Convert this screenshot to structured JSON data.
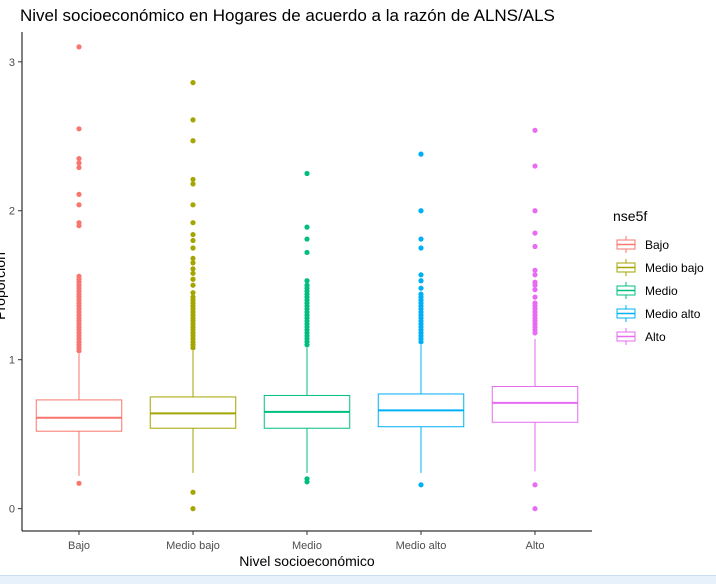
{
  "chart_data": {
    "type": "box",
    "title": "Nivel socioeconómico en Hogares de acuerdo a la razón de ALNS/ALS",
    "xlabel": "Nivel socioeconómico",
    "ylabel": "Proporción",
    "categories": [
      "Bajo",
      "Medio bajo",
      "Medio",
      "Medio alto",
      "Alto"
    ],
    "ylim": [
      -0.15,
      3.2
    ],
    "yticks": [
      0,
      1,
      2,
      3
    ],
    "grid": false,
    "legend": {
      "title": "nse5f",
      "placement": "right",
      "entries": [
        "Bajo",
        "Medio bajo",
        "Medio",
        "Medio alto",
        "Alto"
      ]
    },
    "colors": [
      "#F8766D",
      "#A3A500",
      "#00BF7D",
      "#00B0F6",
      "#E76BF3"
    ],
    "series": [
      {
        "name": "Bajo",
        "whisker_low": 0.22,
        "q1": 0.52,
        "median": 0.61,
        "q3": 0.73,
        "whisker_high": 1.04,
        "outliers": [
          0.17,
          1.06,
          1.08,
          1.1,
          1.12,
          1.14,
          1.16,
          1.18,
          1.2,
          1.22,
          1.24,
          1.26,
          1.28,
          1.3,
          1.32,
          1.34,
          1.36,
          1.38,
          1.4,
          1.42,
          1.44,
          1.46,
          1.48,
          1.5,
          1.52,
          1.54,
          1.56,
          1.9,
          1.92,
          2.04,
          2.11,
          2.29,
          2.32,
          2.35,
          2.55,
          3.1
        ]
      },
      {
        "name": "Medio bajo",
        "whisker_low": 0.24,
        "q1": 0.54,
        "median": 0.64,
        "q3": 0.75,
        "whisker_high": 1.06,
        "outliers": [
          0.0,
          0.11,
          1.08,
          1.1,
          1.12,
          1.14,
          1.16,
          1.18,
          1.2,
          1.22,
          1.24,
          1.26,
          1.28,
          1.3,
          1.32,
          1.34,
          1.36,
          1.38,
          1.4,
          1.42,
          1.45,
          1.5,
          1.54,
          1.58,
          1.61,
          1.65,
          1.68,
          1.75,
          1.8,
          1.84,
          1.92,
          2.04,
          2.18,
          2.21,
          2.47,
          2.61,
          2.86
        ]
      },
      {
        "name": "Medio",
        "whisker_low": 0.24,
        "q1": 0.54,
        "median": 0.65,
        "q3": 0.76,
        "whisker_high": 1.08,
        "outliers": [
          0.18,
          0.2,
          1.1,
          1.12,
          1.14,
          1.16,
          1.18,
          1.2,
          1.22,
          1.24,
          1.26,
          1.28,
          1.3,
          1.32,
          1.34,
          1.36,
          1.38,
          1.4,
          1.42,
          1.44,
          1.46,
          1.48,
          1.5,
          1.53,
          1.72,
          1.81,
          1.89,
          2.25
        ]
      },
      {
        "name": "Medio alto",
        "whisker_low": 0.24,
        "q1": 0.55,
        "median": 0.66,
        "q3": 0.77,
        "whisker_high": 1.1,
        "outliers": [
          0.16,
          1.12,
          1.14,
          1.16,
          1.18,
          1.2,
          1.22,
          1.24,
          1.26,
          1.28,
          1.3,
          1.32,
          1.34,
          1.36,
          1.38,
          1.4,
          1.42,
          1.44,
          1.48,
          1.53,
          1.57,
          1.75,
          1.81,
          2.0,
          2.38
        ]
      },
      {
        "name": "Alto",
        "whisker_low": 0.25,
        "q1": 0.58,
        "median": 0.71,
        "q3": 0.82,
        "whisker_high": 1.14,
        "outliers": [
          0.0,
          0.16,
          1.18,
          1.2,
          1.22,
          1.24,
          1.26,
          1.28,
          1.3,
          1.32,
          1.34,
          1.36,
          1.38,
          1.42,
          1.47,
          1.5,
          1.52,
          1.57,
          1.6,
          1.76,
          1.85,
          2.0,
          2.3,
          2.54
        ]
      }
    ]
  }
}
